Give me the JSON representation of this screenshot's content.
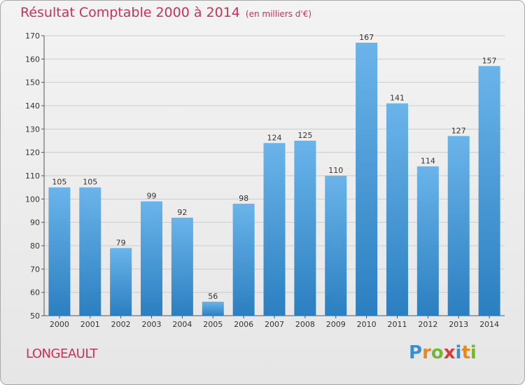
{
  "header": {
    "title": "Résultat Comptable 2000 à 2014",
    "subtitle": "(en milliers d'€)"
  },
  "footer": {
    "commune": "LONGEAULT",
    "brand_letters": [
      "P",
      "r",
      "o",
      "x",
      "i",
      "t",
      "i"
    ]
  },
  "colors": {
    "title": "#c8325a",
    "bar_top": "#6ab4ea",
    "bar_bottom": "#2b7fc0",
    "grid": "#cccccc",
    "brand": [
      "#3a8fd0",
      "#e58a1f",
      "#78b532",
      "#d93a3a",
      "#3a8fd0",
      "#e58a1f",
      "#78b532"
    ]
  },
  "chart_data": {
    "type": "bar",
    "title": "Résultat Comptable 2000 à 2014",
    "subtitle": "(en milliers d'€)",
    "categories": [
      "2000",
      "2001",
      "2002",
      "2003",
      "2004",
      "2005",
      "2006",
      "2007",
      "2008",
      "2009",
      "2010",
      "2011",
      "2012",
      "2013",
      "2014"
    ],
    "values": [
      105,
      105,
      79,
      99,
      92,
      56,
      98,
      124,
      125,
      110,
      167,
      141,
      114,
      127,
      157
    ],
    "xlabel": "",
    "ylabel": "",
    "ylim": [
      50,
      170
    ],
    "yticks": [
      50,
      60,
      70,
      80,
      90,
      100,
      110,
      120,
      130,
      140,
      150,
      160,
      170
    ],
    "grid": true
  }
}
